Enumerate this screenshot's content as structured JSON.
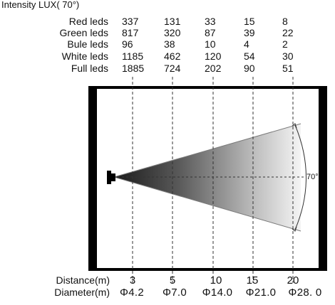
{
  "title": "Intensity LUX( 70°)",
  "rows": [
    {
      "label": "Red leds",
      "values": [
        "337",
        "131",
        "33",
        "15",
        "8"
      ]
    },
    {
      "label": "Green leds",
      "values": [
        "817",
        "320",
        "87",
        "39",
        "22"
      ]
    },
    {
      "label": "Bule leds",
      "values": [
        "96",
        "38",
        "10",
        "4",
        "2"
      ]
    },
    {
      "label": "White leds",
      "values": [
        "1185",
        "462",
        "120",
        "54",
        "30"
      ]
    },
    {
      "label": "Full leds",
      "values": [
        "1885",
        "724",
        "202",
        "90",
        "51"
      ]
    }
  ],
  "beam_angle_label": "70°",
  "distance_label": "Distance(m)",
  "distances": [
    "3",
    "5",
    "10",
    "15",
    "20"
  ],
  "diameter_label": "Diameter(m)",
  "diameters": [
    "Φ4.2",
    "Φ7.0",
    "Φ14.0",
    "Φ21.0",
    "Φ28. 0"
  ]
}
